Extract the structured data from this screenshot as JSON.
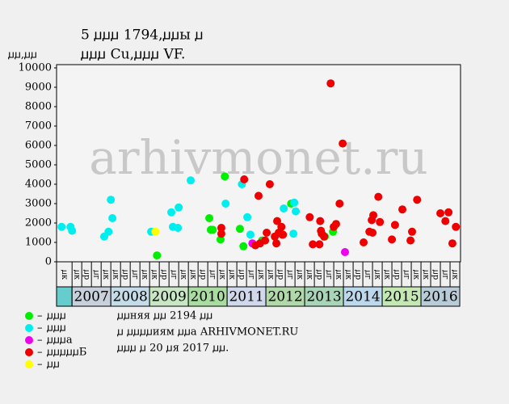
{
  "chart_data": {
    "type": "scatter",
    "title": "5 ꙡꙡꙡ 1794,ꙡꙡы ꙡ",
    "subtitle": "ꙡꙡꙡ Cu,ꙡꙡꙡ VF.",
    "y_label": "ꙡꙡ,ꙡꙡ",
    "watermark": "arhivmonet.ru",
    "xlim": [
      2006.6,
      2017.02
    ],
    "ylim": [
      0,
      10000
    ],
    "yticks": [
      0,
      1000,
      2000,
      3000,
      4000,
      5000,
      6000,
      7000,
      8000,
      9000,
      10000
    ],
    "years": [
      "2007",
      "2008",
      "2009",
      "2010",
      "2011",
      "2012",
      "2013",
      "2014",
      "2015",
      "2016"
    ],
    "year_colors": [
      "#c8d0dc",
      "#c4dce8",
      "#c8e6c4",
      "#a8dca0",
      "#d0d8ec",
      "#b0d8a8",
      "#a8d4b8",
      "#bcd8ec",
      "#c4e8b4",
      "#b8ccd8"
    ],
    "lead_color": "#66cccc",
    "quarter_labels": [
      "ꙡк",
      "ꙡр",
      "ꙡг",
      "ꙡк"
    ],
    "series": [
      {
        "name": "ꙡꙡꙡ",
        "color": "#00ee00",
        "x": [
          2009.19,
          2010.54,
          2010.58,
          2010.63,
          2010.83,
          2010.94,
          2011.33,
          2011.42,
          2011.9,
          2012.65,
          2013.52,
          2013.73
        ],
        "values": [
          330,
          2250,
          1650,
          1650,
          1150,
          4400,
          1700,
          800,
          1100,
          3000,
          1300,
          1550
        ]
      },
      {
        "name": "ꙡꙡꙡ",
        "color": "#00eeee",
        "x": [
          2006.73,
          2006.96,
          2007.0,
          2007.83,
          2007.94,
          2008.0,
          2008.04,
          2009.04,
          2009.56,
          2009.6,
          2009.73,
          2009.75,
          2010.06,
          2010.96,
          2011.38,
          2011.52,
          2011.6,
          2012.46,
          2012.71,
          2012.73,
          2012.77
        ],
        "values": [
          1800,
          1800,
          1600,
          1300,
          1550,
          3200,
          2250,
          1550,
          2550,
          1800,
          1750,
          2800,
          4200,
          3000,
          4000,
          2300,
          1400,
          2750,
          1450,
          3050,
          2600
        ]
      },
      {
        "name": "ꙡꙡꙡа",
        "color": "#ee00ee",
        "x": [
          2011.65,
          2014.04
        ],
        "values": [
          950,
          500
        ]
      },
      {
        "name": "ꙡꙡꙡꙡꙡБ",
        "color": "#ee0000",
        "x": [
          2010.85,
          2010.85,
          2011.44,
          2011.73,
          2011.81,
          2011.85,
          2011.98,
          2012.02,
          2012.1,
          2012.23,
          2012.27,
          2012.29,
          2012.33,
          2012.4,
          2012.42,
          2012.44,
          2013.13,
          2013.21,
          2013.38,
          2013.4,
          2013.42,
          2013.44,
          2013.5,
          2013.67,
          2013.75,
          2013.81,
          2013.9,
          2013.98,
          2014.52,
          2014.67,
          2014.73,
          2014.75,
          2014.77,
          2014.9,
          2014.94,
          2015.25,
          2015.33,
          2015.52,
          2015.73,
          2015.77,
          2015.9,
          2016.5,
          2016.63,
          2016.71,
          2016.81,
          2016.9
        ],
        "values": [
          1750,
          1450,
          4250,
          850,
          3400,
          950,
          1100,
          1500,
          4000,
          1300,
          950,
          2100,
          1500,
          1800,
          1400,
          1400,
          2300,
          900,
          900,
          2100,
          1600,
          1450,
          1300,
          9200,
          1800,
          1950,
          3000,
          6100,
          1000,
          1550,
          2150,
          1500,
          2400,
          3350,
          2050,
          1150,
          1900,
          2700,
          1100,
          1550,
          3200,
          2500,
          2100,
          2550,
          950,
          1800
        ]
      },
      {
        "name": "ꙡꙡ",
        "color": "#ffff00",
        "x": [
          2009.15
        ],
        "values": [
          1550
        ]
      }
    ],
    "notes": [
      "ꙡꙡняя ꙡꙡ 2194 ꙡꙡ",
      "ꙡ ꙡꙡꙡꙡиям ꙡꙡа ARHIVMONET.RU",
      "ꙡꙡꙡ ꙡ 20 ꙡя 2017 ꙡꙡ."
    ]
  }
}
